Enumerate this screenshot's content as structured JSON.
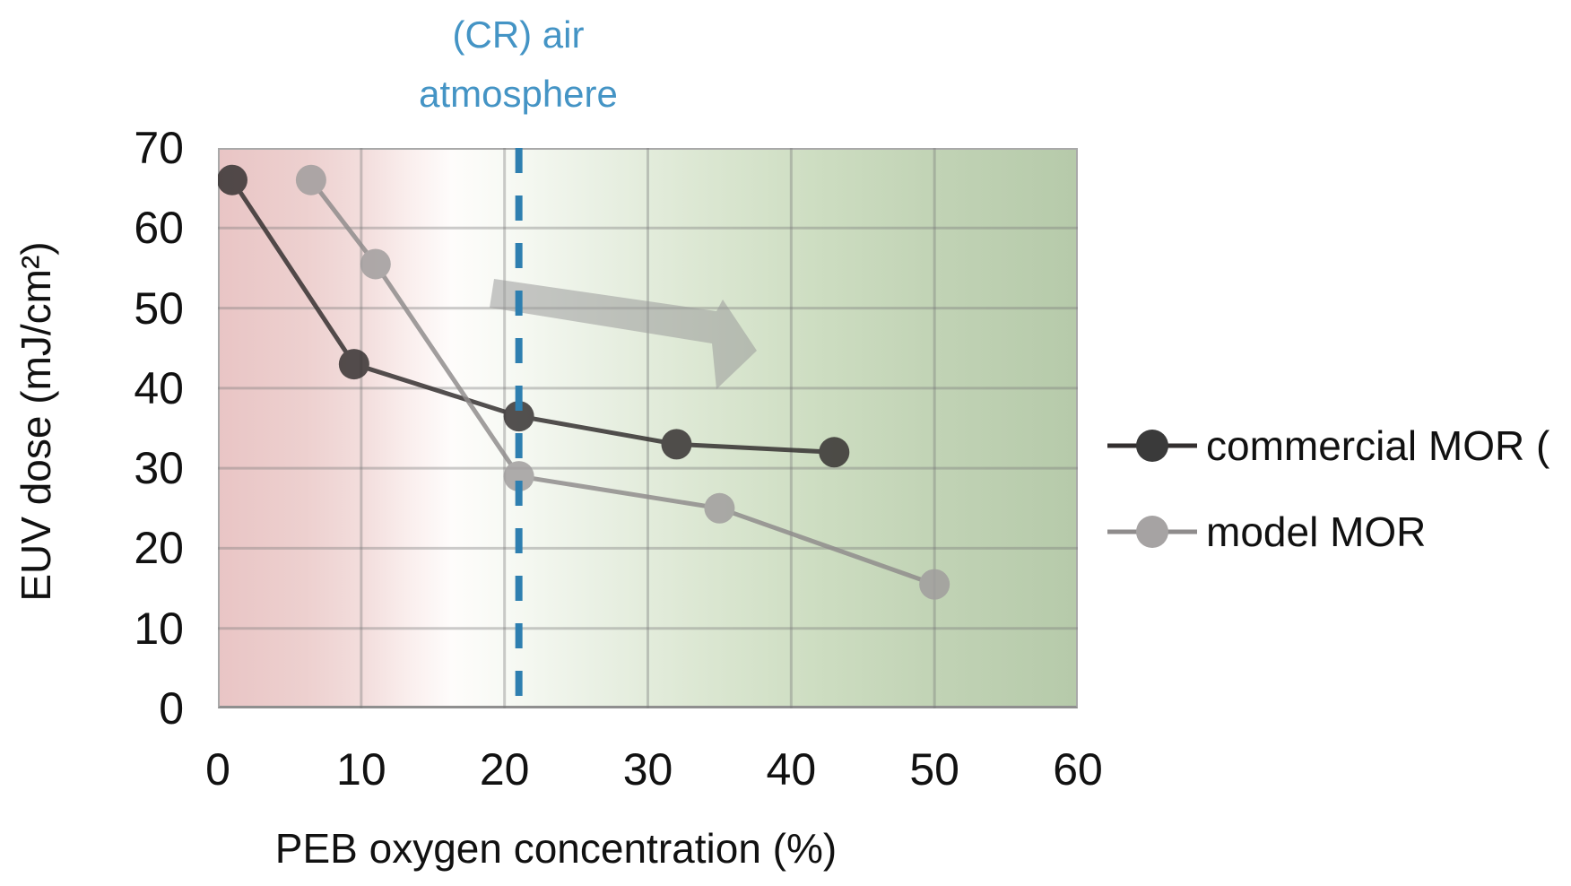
{
  "chart_title": {
    "line1": "(CR) air",
    "line2": "atmosphere",
    "color": "#4494c5"
  },
  "axes": {
    "x_title": "PEB oxygen concentration (%)",
    "y_title": "EUV dose (mJ/cm²)",
    "x_tick_labels": [
      "0",
      "10",
      "20",
      "30",
      "40",
      "50",
      "60"
    ],
    "y_tick_labels": [
      "0",
      "10",
      "20",
      "30",
      "40",
      "50",
      "60",
      "70"
    ],
    "x_tick_values": [
      0,
      10,
      20,
      30,
      40,
      50,
      60
    ],
    "y_tick_values": [
      0,
      10,
      20,
      30,
      40,
      50,
      60,
      70
    ]
  },
  "legend": {
    "items": [
      {
        "label": "commercial MOR ("
      },
      {
        "label": "model MOR"
      }
    ]
  },
  "chart_data": {
    "type": "line",
    "xlabel": "PEB oxygen concentration (%)",
    "ylabel": "EUV dose (mJ/cm²)",
    "xlim": [
      0,
      60
    ],
    "ylim": [
      0,
      70
    ],
    "grid": true,
    "legend_position": "right",
    "series": [
      {
        "name": "commercial MOR",
        "line_color": "#332f2f",
        "marker_color": "#343030",
        "x": [
          1,
          9.5,
          21,
          32,
          43
        ],
        "y": [
          66,
          43,
          36.5,
          33,
          32
        ]
      },
      {
        "name": "model MOR",
        "line_color": "#8f8c8c",
        "marker_color": "#a09d9d",
        "x": [
          6.5,
          11,
          21,
          35,
          50
        ],
        "y": [
          66,
          55.5,
          29,
          25,
          15.5
        ]
      }
    ],
    "annotations": {
      "dashed_vline": {
        "x": 21,
        "color": "#2e7fb0",
        "label": "(CR) air atmosphere"
      },
      "block_arrow": {
        "direction": "right-down",
        "color": "#9b9b9b",
        "opacity": 0.55
      },
      "background_gradient": {
        "left": "#e9c5c5",
        "center": "#fefcfb",
        "right": "#b6caaa"
      }
    }
  }
}
